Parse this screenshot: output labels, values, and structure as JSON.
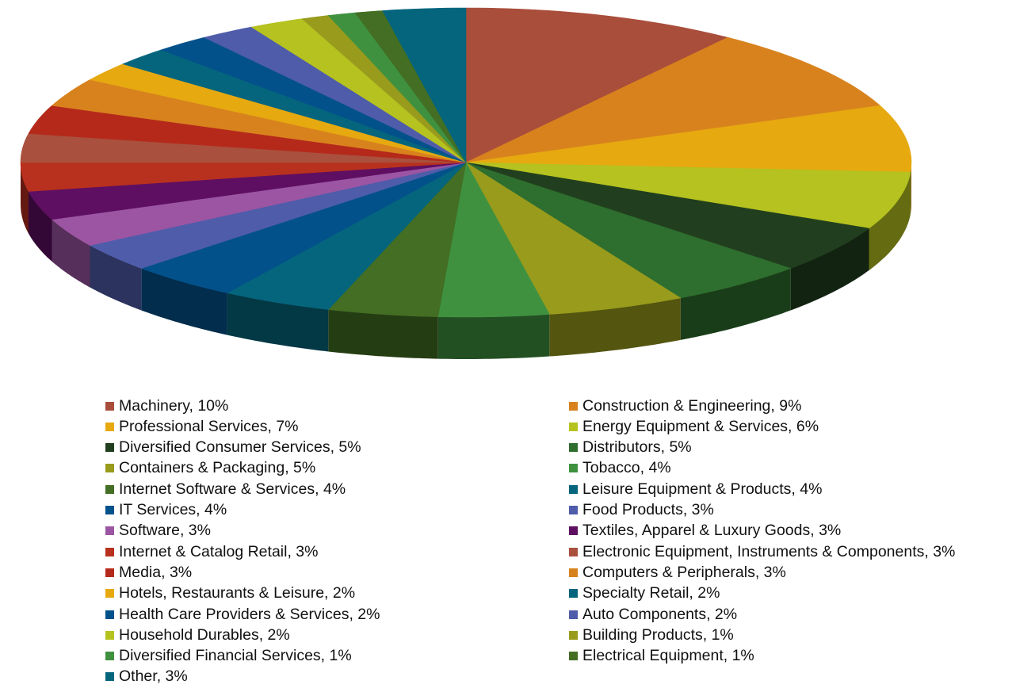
{
  "chart_data": {
    "type": "pie",
    "style": "3d",
    "legend_position": "bottom",
    "slices": [
      {
        "label": "Machinery",
        "value": 10,
        "legend_text": "Machinery, 10%",
        "color": "#A94E3B"
      },
      {
        "label": "Construction & Engineering",
        "value": 9,
        "legend_text": "Construction & Engineering, 9%",
        "color": "#D8821E"
      },
      {
        "label": "Professional Services",
        "value": 7,
        "legend_text": "Professional Services, 7%",
        "color": "#E6A910"
      },
      {
        "label": "Energy Equipment & Services",
        "value": 6,
        "legend_text": "Energy Equipment & Services, 6%",
        "color": "#B5C21F"
      },
      {
        "label": "Diversified Consumer Services",
        "value": 5,
        "legend_text": "Diversified Consumer Services, 5%",
        "color": "#213F1E"
      },
      {
        "label": "Distributors",
        "value": 5,
        "legend_text": "Distributors, 5%",
        "color": "#2E6E2E"
      },
      {
        "label": "Containers & Packaging",
        "value": 5,
        "legend_text": "Containers & Packaging, 5%",
        "color": "#989B1C"
      },
      {
        "label": "Tobacco",
        "value": 4,
        "legend_text": "Tobacco, 4%",
        "color": "#3F9140"
      },
      {
        "label": "Internet Software & Services",
        "value": 4,
        "legend_text": "Internet Software & Services, 4%",
        "color": "#436E23"
      },
      {
        "label": "Leisure Equipment & Products",
        "value": 4,
        "legend_text": "Leisure Equipment & Products, 4%",
        "color": "#05657D"
      },
      {
        "label": "IT Services",
        "value": 4,
        "legend_text": "IT Services, 4%",
        "color": "#03518B"
      },
      {
        "label": "Food Products",
        "value": 3,
        "legend_text": "Food Products, 3%",
        "color": "#4F5CAA"
      },
      {
        "label": "Software",
        "value": 3,
        "legend_text": "Software, 3%",
        "color": "#9C55A3"
      },
      {
        "label": "Textiles, Apparel & Luxury Goods",
        "value": 3,
        "legend_text": "Textiles, Apparel & Luxury Goods, 3%",
        "color": "#5E0F62"
      },
      {
        "label": "Internet & Catalog Retail",
        "value": 3,
        "legend_text": "Internet & Catalog Retail, 3%",
        "color": "#B8301E"
      },
      {
        "label": "Electronic Equipment, Instruments & Components",
        "value": 3,
        "legend_text": "Electronic Equipment, Instruments & Components, 3%",
        "color": "#A9503E"
      },
      {
        "label": "Media",
        "value": 3,
        "legend_text": "Media, 3%",
        "color": "#B5291B"
      },
      {
        "label": "Computers & Peripherals",
        "value": 3,
        "legend_text": "Computers & Peripherals, 3%",
        "color": "#D8821E"
      },
      {
        "label": "Hotels, Restaurants & Leisure",
        "value": 2,
        "legend_text": "Hotels, Restaurants & Leisure, 2%",
        "color": "#E6A910"
      },
      {
        "label": "Specialty Retail",
        "value": 2,
        "legend_text": "Specialty Retail, 2%",
        "color": "#05657D"
      },
      {
        "label": "Health Care Providers & Services",
        "value": 2,
        "legend_text": "Health Care Providers & Services, 2%",
        "color": "#03518B"
      },
      {
        "label": "Auto Components",
        "value": 2,
        "legend_text": "Auto Components, 2%",
        "color": "#4F5CAA"
      },
      {
        "label": "Household Durables",
        "value": 2,
        "legend_text": "Household Durables, 2%",
        "color": "#B5C21F"
      },
      {
        "label": "Building Products",
        "value": 1,
        "legend_text": "Building Products, 1%",
        "color": "#989B1C"
      },
      {
        "label": "Diversified Financial Services",
        "value": 1,
        "legend_text": "Diversified Financial Services, 1%",
        "color": "#3F9140"
      },
      {
        "label": "Electrical Equipment",
        "value": 1,
        "legend_text": "Electrical Equipment, 1%",
        "color": "#436E23"
      },
      {
        "label": "Other",
        "value": 3,
        "legend_text": "Other, 3%",
        "color": "#05657D"
      }
    ]
  }
}
